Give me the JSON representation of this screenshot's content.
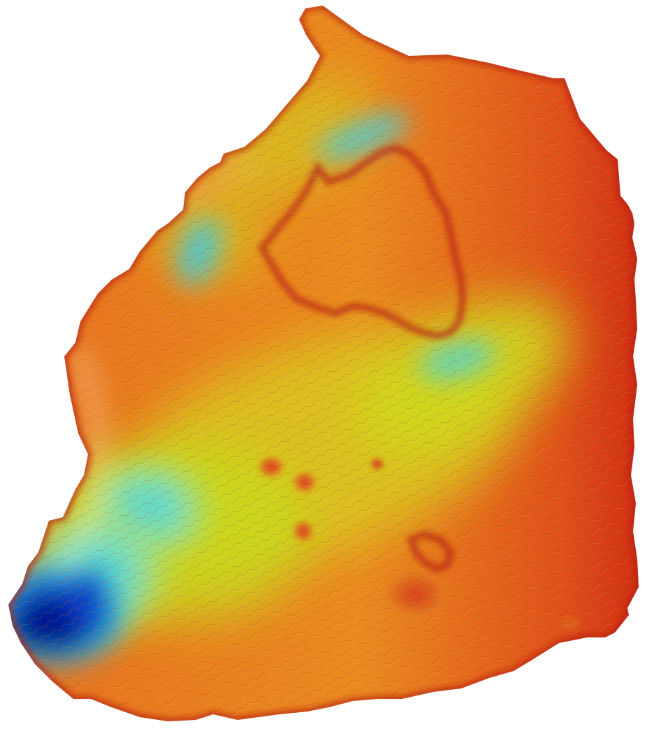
{
  "map": {
    "kind": "multibeam-bathymetry-hillshade",
    "colormap": "jet",
    "colors": {
      "background": "#ffffff",
      "deepest": "#00109a",
      "deep": "#0a5fd8",
      "mid_deep": "#34d0e6",
      "mid": "#c8dc1a",
      "shallow_mid": "#f2b21c",
      "shallow": "#e8651e",
      "shallowest": "#cc1e10"
    }
  }
}
